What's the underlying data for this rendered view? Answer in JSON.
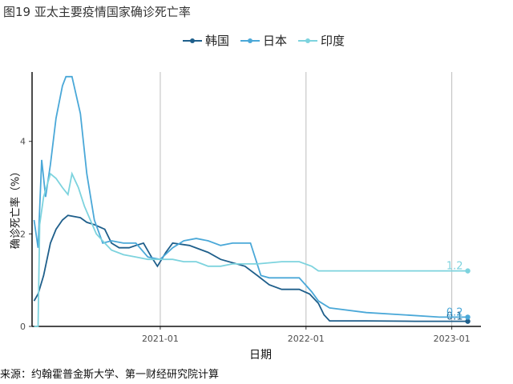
{
  "figure": {
    "title": "图19 亚太主要疫情国家确诊死亡率",
    "caption": "来源：约翰霍普金斯大学、第一财经研究院计算"
  },
  "chart_data": {
    "type": "line",
    "xlabel": "日期",
    "ylabel": "确诊死亡率（%）",
    "ylim": [
      0,
      5.5
    ],
    "y_ticks": [
      0,
      2,
      4
    ],
    "x_ticks": [
      "2021-01",
      "2022-01",
      "2023-01"
    ],
    "x_range": [
      "2020-02-15",
      "2023-03-15"
    ],
    "grid": "vertical major lines on x ticks",
    "legend_position": "top",
    "series": [
      {
        "name": "韩国",
        "color": "#1f5f8b",
        "end_label": "0.1",
        "points": [
          [
            "2020-02-20",
            0.55
          ],
          [
            "2020-03-01",
            0.7
          ],
          [
            "2020-03-15",
            1.1
          ],
          [
            "2020-04-01",
            1.8
          ],
          [
            "2020-04-15",
            2.1
          ],
          [
            "2020-05-01",
            2.3
          ],
          [
            "2020-05-15",
            2.4
          ],
          [
            "2020-06-15",
            2.35
          ],
          [
            "2020-07-01",
            2.25
          ],
          [
            "2020-07-20",
            2.2
          ],
          [
            "2020-08-15",
            2.1
          ],
          [
            "2020-09-01",
            1.8
          ],
          [
            "2020-09-20",
            1.7
          ],
          [
            "2020-10-15",
            1.7
          ],
          [
            "2020-11-01",
            1.75
          ],
          [
            "2020-11-20",
            1.8
          ],
          [
            "2020-12-10",
            1.5
          ],
          [
            "2020-12-25",
            1.3
          ],
          [
            "2021-01-15",
            1.6
          ],
          [
            "2021-02-01",
            1.8
          ],
          [
            "2021-03-15",
            1.75
          ],
          [
            "2021-05-01",
            1.6
          ],
          [
            "2021-06-01",
            1.45
          ],
          [
            "2021-08-01",
            1.3
          ],
          [
            "2021-09-01",
            1.1
          ],
          [
            "2021-10-01",
            0.9
          ],
          [
            "2021-11-01",
            0.8
          ],
          [
            "2021-12-15",
            0.8
          ],
          [
            "2022-01-10",
            0.7
          ],
          [
            "2022-02-01",
            0.5
          ],
          [
            "2022-02-15",
            0.25
          ],
          [
            "2022-03-01",
            0.12
          ],
          [
            "2022-06-01",
            0.12
          ],
          [
            "2022-10-01",
            0.11
          ],
          [
            "2023-02-10",
            0.11
          ]
        ]
      },
      {
        "name": "日本",
        "color": "#4aa8d8",
        "end_label": "0.2",
        "points": [
          [
            "2020-02-20",
            2.3
          ],
          [
            "2020-03-01",
            1.7
          ],
          [
            "2020-03-10",
            3.6
          ],
          [
            "2020-03-20",
            2.8
          ],
          [
            "2020-04-01",
            3.5
          ],
          [
            "2020-04-15",
            4.5
          ],
          [
            "2020-05-01",
            5.2
          ],
          [
            "2020-05-10",
            5.4
          ],
          [
            "2020-05-25",
            5.4
          ],
          [
            "2020-06-15",
            4.6
          ],
          [
            "2020-07-01",
            3.3
          ],
          [
            "2020-07-20",
            2.3
          ],
          [
            "2020-08-10",
            1.8
          ],
          [
            "2020-09-01",
            1.85
          ],
          [
            "2020-10-01",
            1.8
          ],
          [
            "2020-11-01",
            1.8
          ],
          [
            "2020-12-01",
            1.5
          ],
          [
            "2021-01-01",
            1.45
          ],
          [
            "2021-02-01",
            1.7
          ],
          [
            "2021-03-01",
            1.85
          ],
          [
            "2021-04-01",
            1.9
          ],
          [
            "2021-05-01",
            1.85
          ],
          [
            "2021-06-01",
            1.75
          ],
          [
            "2021-07-01",
            1.8
          ],
          [
            "2021-08-15",
            1.8
          ],
          [
            "2021-09-10",
            1.1
          ],
          [
            "2021-10-01",
            1.05
          ],
          [
            "2021-11-01",
            1.05
          ],
          [
            "2021-12-15",
            1.05
          ],
          [
            "2022-01-15",
            0.75
          ],
          [
            "2022-02-01",
            0.55
          ],
          [
            "2022-03-01",
            0.4
          ],
          [
            "2022-06-01",
            0.3
          ],
          [
            "2022-09-01",
            0.25
          ],
          [
            "2022-12-01",
            0.2
          ],
          [
            "2023-02-10",
            0.2
          ]
        ]
      },
      {
        "name": "印度",
        "color": "#7dd3de",
        "end_label": "1.2",
        "points": [
          [
            "2020-02-20",
            0.0
          ],
          [
            "2020-03-01",
            0.0
          ],
          [
            "2020-03-05",
            2.2
          ],
          [
            "2020-03-15",
            2.8
          ],
          [
            "2020-04-01",
            3.3
          ],
          [
            "2020-04-15",
            3.2
          ],
          [
            "2020-05-01",
            3.0
          ],
          [
            "2020-05-15",
            2.85
          ],
          [
            "2020-05-25",
            3.3
          ],
          [
            "2020-06-10",
            3.0
          ],
          [
            "2020-06-25",
            2.6
          ],
          [
            "2020-07-10",
            2.3
          ],
          [
            "2020-07-25",
            2.0
          ],
          [
            "2020-08-15",
            1.8
          ],
          [
            "2020-09-01",
            1.65
          ],
          [
            "2020-10-01",
            1.55
          ],
          [
            "2020-11-01",
            1.5
          ],
          [
            "2020-12-01",
            1.45
          ],
          [
            "2021-01-01",
            1.45
          ],
          [
            "2021-02-01",
            1.45
          ],
          [
            "2021-03-01",
            1.4
          ],
          [
            "2021-04-01",
            1.4
          ],
          [
            "2021-05-01",
            1.3
          ],
          [
            "2021-06-01",
            1.3
          ],
          [
            "2021-07-01",
            1.35
          ],
          [
            "2021-09-01",
            1.35
          ],
          [
            "2021-11-01",
            1.4
          ],
          [
            "2021-12-15",
            1.4
          ],
          [
            "2022-01-15",
            1.3
          ],
          [
            "2022-02-01",
            1.2
          ],
          [
            "2022-06-01",
            1.2
          ],
          [
            "2022-10-01",
            1.2
          ],
          [
            "2023-02-10",
            1.2
          ]
        ]
      }
    ]
  }
}
